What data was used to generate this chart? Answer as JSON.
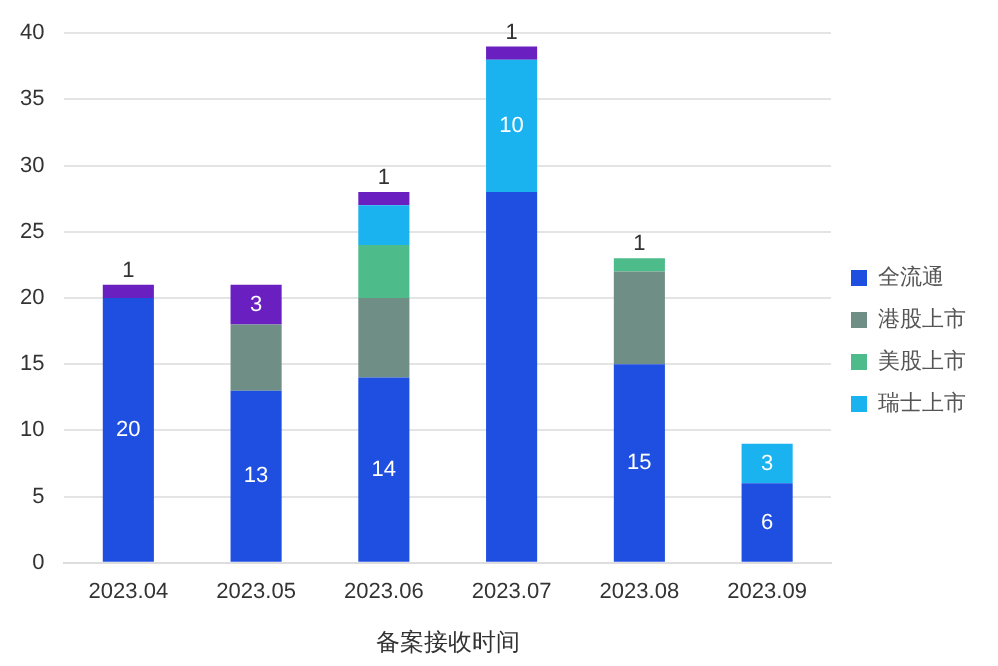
{
  "chart_data": {
    "type": "bar",
    "stacked": true,
    "xlabel": "备案接收时间",
    "categories": [
      "2023.04",
      "2023.05",
      "2023.06",
      "2023.07",
      "2023.08",
      "2023.09"
    ],
    "series": [
      {
        "name": "全流通",
        "color": "#1f4fe0",
        "values": [
          20,
          13,
          14,
          28,
          15,
          6
        ],
        "value_labels": [
          "20",
          "13",
          "14",
          null,
          "15",
          "6"
        ]
      },
      {
        "name": "港股上市",
        "color": "#6f8f86",
        "values": [
          null,
          5,
          6,
          null,
          7,
          null
        ]
      },
      {
        "name": "美股上市",
        "color": "#4dbb8a",
        "values": [
          null,
          null,
          4,
          null,
          1,
          null
        ],
        "value_labels": [
          null,
          null,
          null,
          null,
          "1",
          null
        ]
      },
      {
        "name": "瑞士上市",
        "color": "#1ab3f0",
        "values": [
          null,
          null,
          3,
          10,
          null,
          3
        ],
        "value_labels": [
          null,
          null,
          null,
          "10",
          null,
          "3"
        ]
      },
      {
        "color": "#6a1fc0",
        "values": [
          1,
          3,
          1,
          1,
          null,
          null
        ],
        "value_labels": [
          "1",
          "3",
          "1",
          "1",
          null,
          null
        ]
      }
    ],
    "ylim": [
      0,
      40
    ],
    "yticks": [
      0,
      5,
      10,
      15,
      20,
      25,
      30,
      35,
      40
    ],
    "grid": "y",
    "legend": "right"
  }
}
